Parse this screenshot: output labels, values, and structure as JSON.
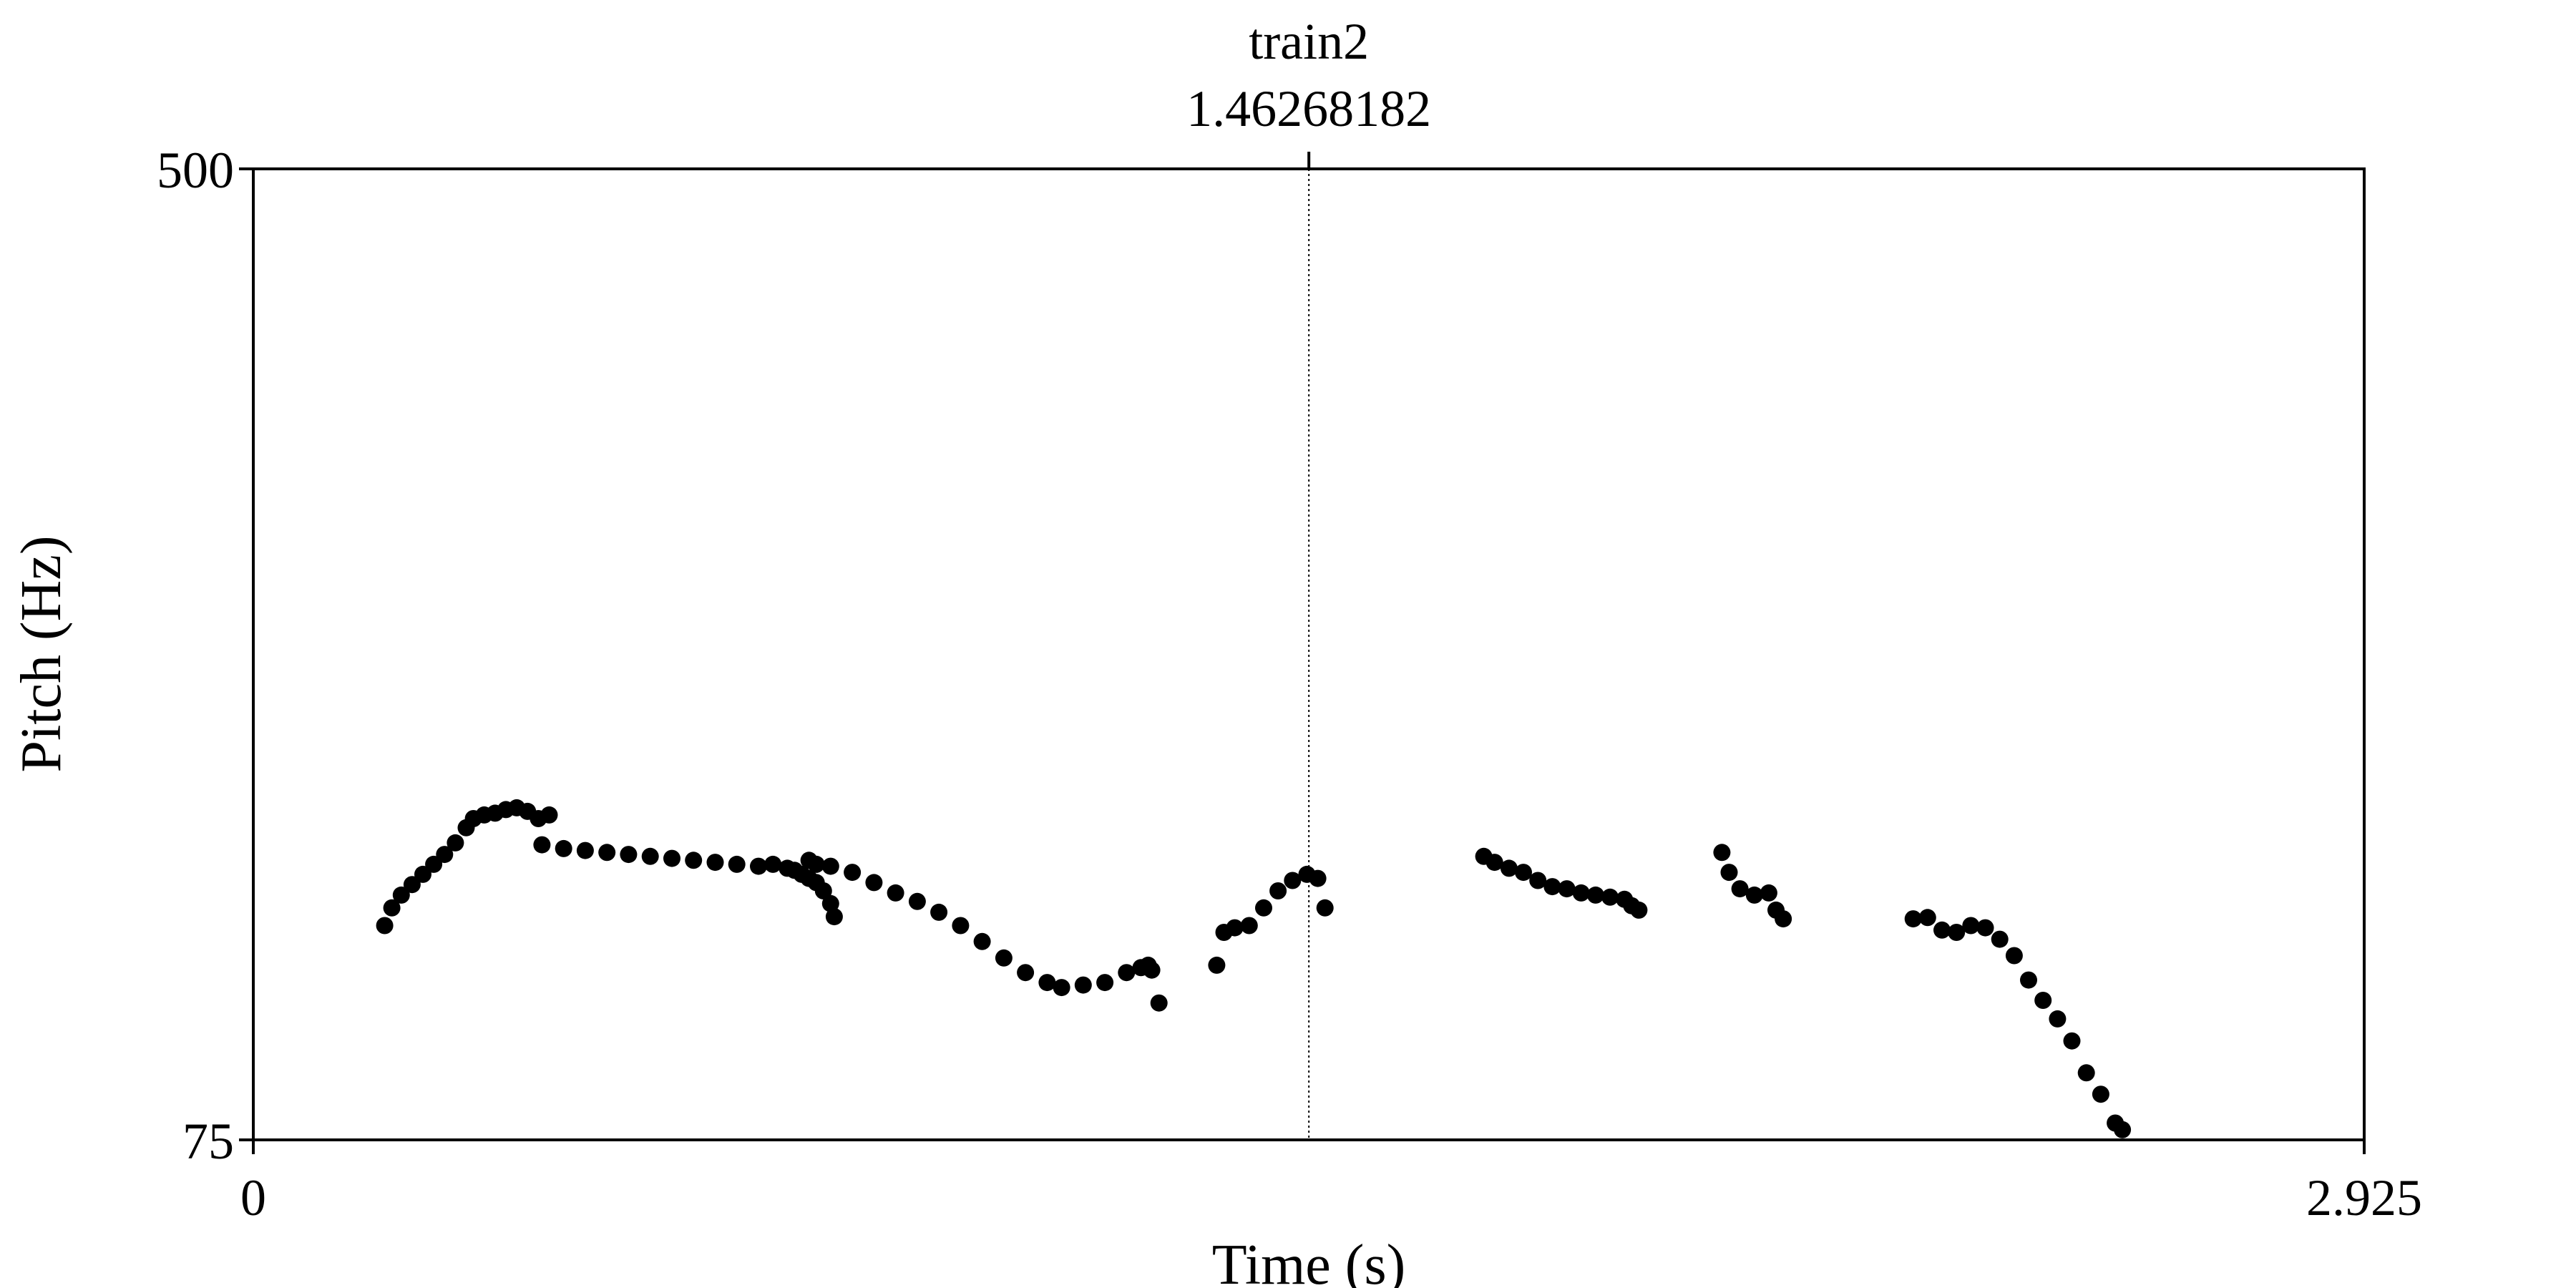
{
  "chart_data": {
    "type": "scatter",
    "title": "train2",
    "cursor": {
      "label": "1.46268182",
      "x": 1.46268182
    },
    "xlabel": "Time (s)",
    "ylabel": "Pitch (Hz)",
    "xlim": [
      0,
      2.925
    ],
    "ylim": [
      75,
      500
    ],
    "x_tick_labels": [
      "0",
      "2.925"
    ],
    "y_tick_labels": [
      "75",
      "500"
    ],
    "grid": false,
    "dot_color": "#000000",
    "segments": [
      {
        "x": [
          0.182,
          0.192,
          0.205,
          0.22,
          0.235,
          0.25,
          0.265,
          0.28,
          0.295,
          0.305,
          0.32,
          0.335,
          0.35,
          0.365,
          0.38,
          0.395,
          0.41
        ],
        "y": [
          114,
          118,
          121,
          123.5,
          126,
          128.5,
          131,
          134,
          138,
          140.5,
          141.5,
          142,
          143,
          143.5,
          142.5,
          140.5,
          141.5
        ]
      },
      {
        "x": [
          0.4,
          0.43,
          0.46,
          0.49,
          0.52,
          0.55,
          0.58,
          0.61,
          0.64,
          0.67,
          0.7,
          0.72,
          0.74,
          0.75,
          0.76,
          0.77,
          0.78,
          0.79,
          0.8,
          0.805
        ],
        "y": [
          133.5,
          132.5,
          132,
          131.5,
          131,
          130.5,
          130,
          129.5,
          129,
          128.5,
          128,
          128.5,
          127.5,
          127,
          126,
          125,
          124,
          122,
          119,
          116
        ]
      },
      {
        "x": [
          0.77,
          0.78,
          0.8,
          0.83,
          0.86,
          0.89,
          0.92,
          0.95,
          0.98,
          1.01,
          1.04,
          1.07,
          1.1,
          1.12,
          1.15,
          1.18,
          1.21,
          1.23,
          1.24,
          1.245,
          1.255
        ],
        "y": [
          129.5,
          128.5,
          128,
          126.5,
          124,
          121.5,
          119.5,
          117,
          114,
          110.5,
          107,
          104,
          102,
          101,
          101.5,
          102,
          104,
          105,
          105.5,
          104.5,
          98
        ]
      },
      {
        "x": [
          1.335,
          1.345,
          1.36,
          1.38,
          1.4,
          1.42,
          1.44,
          1.46,
          1.475,
          1.485
        ],
        "y": [
          105.5,
          112.5,
          113.5,
          114,
          118,
          122,
          124.5,
          126,
          125,
          118
        ]
      },
      {
        "x": [
          1.705,
          1.72,
          1.74,
          1.76,
          1.78,
          1.8,
          1.82,
          1.84,
          1.86,
          1.88,
          1.9,
          1.91,
          1.92
        ],
        "y": [
          130.5,
          129,
          127.5,
          126.5,
          124.5,
          123,
          122.5,
          121.5,
          121,
          120.5,
          120,
          118.5,
          117.5
        ]
      },
      {
        "x": [
          2.035,
          2.045,
          2.06,
          2.08,
          2.1,
          2.11,
          2.12
        ],
        "y": [
          131.5,
          126.5,
          122.5,
          121,
          121.5,
          117.5,
          115.5
        ]
      },
      {
        "x": [
          2.3,
          2.32,
          2.34,
          2.36,
          2.38,
          2.4,
          2.42,
          2.44,
          2.46,
          2.48,
          2.5,
          2.52,
          2.54,
          2.56,
          2.58,
          2.59
        ],
        "y": [
          115.5,
          115.8,
          113,
          112.5,
          114,
          113.5,
          111,
          107.5,
          102.5,
          98.5,
          95,
          91,
          85.5,
          82,
          77.5,
          76.5
        ]
      }
    ]
  }
}
